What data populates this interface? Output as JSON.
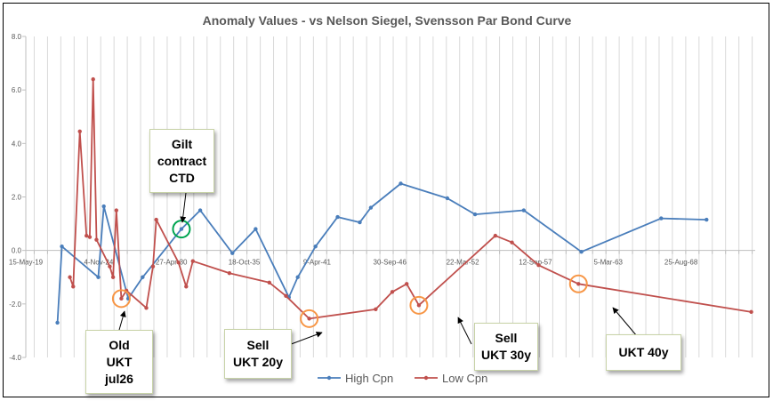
{
  "chart_data": {
    "type": "line",
    "title": "Anomaly Values - vs Nelson Siegel, Svensson Par Bond Curve",
    "xlabel": "",
    "ylabel": "",
    "ylim": [
      -4,
      8
    ],
    "y_ticks": [
      "8.0",
      "6.0",
      "4.0",
      "2.0",
      "0.0",
      "-2.0",
      "-4.0"
    ],
    "x_ticks": [
      "15-May-19",
      "4-Nov-24",
      "27-Apr-30",
      "18-Oct-35",
      "9-Apr-41",
      "30-Sep-46",
      "22-Mar-52",
      "12-Sep-57",
      "5-Mar-63",
      "25-Aug-68"
    ],
    "xlim": [
      "15-May-19",
      "25-Mar-74"
    ],
    "grid": "vertical",
    "legend": "bottom",
    "series": [
      {
        "name": "High Cpn",
        "color": "#4a7ebb",
        "points": [
          [
            "30-Sep-21",
            -2.7
          ],
          [
            "30-Jan-22",
            0.15
          ],
          [
            "27-Oct-24",
            -1.0
          ],
          [
            "27-Mar-25",
            1.65
          ],
          [
            "27-Jan-27",
            -1.8
          ],
          [
            "27-Feb-28",
            -1.0
          ],
          [
            "27-Jan-31",
            0.8
          ],
          [
            "27-Jun-32",
            1.5
          ],
          [
            "27-Nov-34",
            -0.1
          ],
          [
            "27-Aug-36",
            0.8
          ],
          [
            "27-Feb-39",
            -1.75
          ],
          [
            "27-Oct-39",
            -1.0
          ],
          [
            "27-Feb-41",
            0.15
          ],
          [
            "27-Oct-42",
            1.25
          ],
          [
            "27-Jun-44",
            1.05
          ],
          [
            "27-Apr-45",
            1.6
          ],
          [
            "27-Jul-47",
            2.5
          ],
          [
            "27-Jan-51",
            1.95
          ],
          [
            "27-Feb-53",
            1.35
          ],
          [
            "27-Oct-56",
            1.5
          ],
          [
            "27-Feb-61",
            -0.05
          ],
          [
            "27-Feb-67",
            1.2
          ],
          [
            "27-Jul-70",
            1.15
          ]
        ]
      },
      {
        "name": "Low Cpn",
        "color": "#c0504d",
        "points": [
          [
            "7-Sep-22",
            -1.0
          ],
          [
            "7-Dec-22",
            -1.35
          ],
          [
            "7-Jun-23",
            4.45
          ],
          [
            "7-Dec-23",
            0.55
          ],
          [
            "7-Mar-24",
            0.5
          ],
          [
            "7-Jun-24",
            6.4
          ],
          [
            "7-Sep-24",
            0.4
          ],
          [
            "7-Sep-25",
            -0.6
          ],
          [
            "7-Dec-25",
            -1.0
          ],
          [
            "7-Mar-26",
            1.5
          ],
          [
            "22-Jul-26",
            -1.8
          ],
          [
            "7-Dec-26",
            -1.5
          ],
          [
            "7-Jun-28",
            -2.15
          ],
          [
            "7-Dec-28",
            -0.6
          ],
          [
            "7-Mar-29",
            1.15
          ],
          [
            "7-Nov-30",
            -0.45
          ],
          [
            "7-Jun-31",
            -1.35
          ],
          [
            "7-Dec-31",
            -0.4
          ],
          [
            "7-Sep-34",
            -0.85
          ],
          [
            "7-Sep-37",
            -1.2
          ],
          [
            "7-Dec-38",
            -1.7
          ],
          [
            "7-Sep-40",
            -2.55
          ],
          [
            "7-Sep-45",
            -2.2
          ],
          [
            "7-Dec-46",
            -1.55
          ],
          [
            "7-Jan-48",
            -1.25
          ],
          [
            "7-Dec-48",
            -2.05
          ],
          [
            "7-Sep-54",
            0.55
          ],
          [
            "7-Dec-55",
            0.3
          ],
          [
            "7-Dec-57",
            -0.55
          ],
          [
            "7-Dec-60",
            -1.25
          ],
          [
            "7-Dec-73",
            -2.3
          ]
        ]
      }
    ],
    "annotations": [
      {
        "lines": [
          "Gilt",
          "contract",
          "CTD"
        ],
        "marker_color": "#00a550",
        "target": [
          "27-Jan-31",
          0.8
        ]
      },
      {
        "lines": [
          "Old",
          "UKT",
          "jul26"
        ],
        "marker_color": "#f79646",
        "target": [
          "22-Jul-26",
          -1.8
        ]
      },
      {
        "lines": [
          "Sell",
          "UKT 20y"
        ],
        "marker_color": "#f79646",
        "target": [
          "7-Sep-40",
          -2.55
        ]
      },
      {
        "lines": [
          "Sell",
          "UKT 30y"
        ],
        "marker_color": "#f79646",
        "target": [
          "7-Dec-48",
          -2.05
        ]
      },
      {
        "lines": [
          "UKT 40y"
        ],
        "marker_color": "#f79646",
        "target": [
          "7-Dec-60",
          -1.25
        ]
      }
    ]
  }
}
